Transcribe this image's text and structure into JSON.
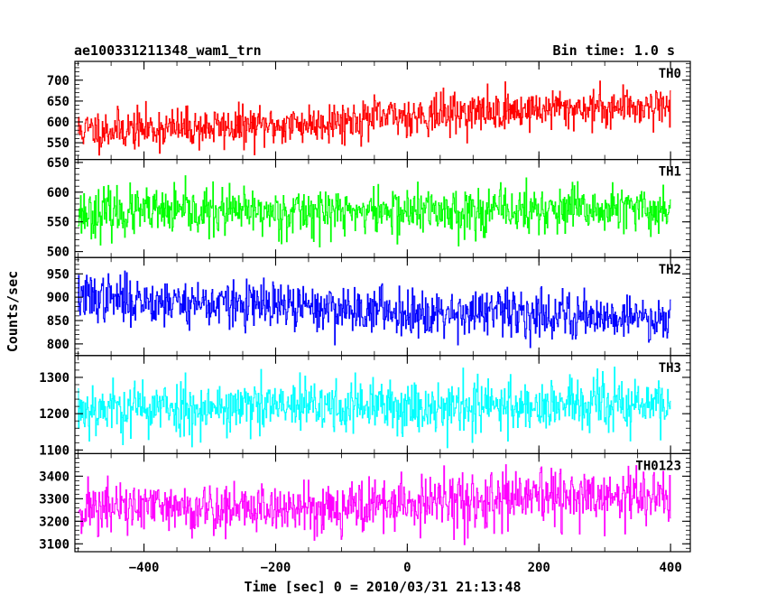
{
  "header": {
    "left_title": "ae100331211348_wam1_trn",
    "right_title": "Bin time: 1.0 s"
  },
  "chart_data": {
    "type": "line",
    "title": "ae100331211348_wam1_trn",
    "subtitle": "Bin time: 1.0 s",
    "xlabel": "Time [sec] 0 = 2010/03/31 21:13:48",
    "ylabel": "Counts/sec",
    "xlim": [
      -505,
      430
    ],
    "x_ticks": [
      -400,
      -200,
      0,
      200,
      400
    ],
    "x_tick_labels": [
      "−400",
      "−200",
      "0",
      "200",
      "400"
    ],
    "x_range_data": [
      -500,
      400
    ],
    "bin_time_s": 1.0,
    "grid": false,
    "legend": "none",
    "panels": [
      {
        "name": "TH0",
        "color": "#ff0000",
        "ylim": [
          510,
          745
        ],
        "yticks": [
          550,
          600,
          650,
          700
        ],
        "ytick_labels": [
          "550",
          "600",
          "650",
          "700"
        ],
        "trend": {
          "x": [
            -500,
            -200,
            0,
            200,
            400
          ],
          "y": [
            580,
            590,
            615,
            630,
            640
          ]
        },
        "noise_sd": 24,
        "seed": 11
      },
      {
        "name": "TH1",
        "color": "#00ff00",
        "ylim": [
          490,
          655
        ],
        "yticks": [
          500,
          550,
          600,
          650
        ],
        "ytick_labels": [
          "500",
          "550",
          "600",
          "650"
        ],
        "trend": {
          "x": [
            -500,
            0,
            400
          ],
          "y": [
            565,
            568,
            570
          ]
        },
        "noise_sd": 20,
        "seed": 23
      },
      {
        "name": "TH2",
        "color": "#0000ff",
        "ylim": [
          775,
          985
        ],
        "yticks": [
          800,
          850,
          900,
          950
        ],
        "ytick_labels": [
          "800",
          "850",
          "900",
          "950"
        ],
        "trend": {
          "x": [
            -500,
            -200,
            0,
            200,
            400
          ],
          "y": [
            900,
            880,
            870,
            865,
            855
          ]
        },
        "noise_sd": 25,
        "seed": 37
      },
      {
        "name": "TH3",
        "color": "#00ffff",
        "ylim": [
          1090,
          1360
        ],
        "yticks": [
          1100,
          1200,
          1300
        ],
        "ytick_labels": [
          "1100",
          "1200",
          "1300"
        ],
        "trend": {
          "x": [
            -500,
            0,
            400
          ],
          "y": [
            1215,
            1220,
            1225
          ]
        },
        "noise_sd": 38,
        "seed": 53
      },
      {
        "name": "TH0123",
        "color": "#ff00ff",
        "ylim": [
          3065,
          3500
        ],
        "yticks": [
          3100,
          3200,
          3300,
          3400
        ],
        "ytick_labels": [
          "3100",
          "3200",
          "3300",
          "3400"
        ],
        "trend": {
          "x": [
            -500,
            -200,
            0,
            200,
            400
          ],
          "y": [
            3260,
            3255,
            3275,
            3300,
            3310
          ]
        },
        "noise_sd": 60,
        "seed": 71
      }
    ]
  }
}
